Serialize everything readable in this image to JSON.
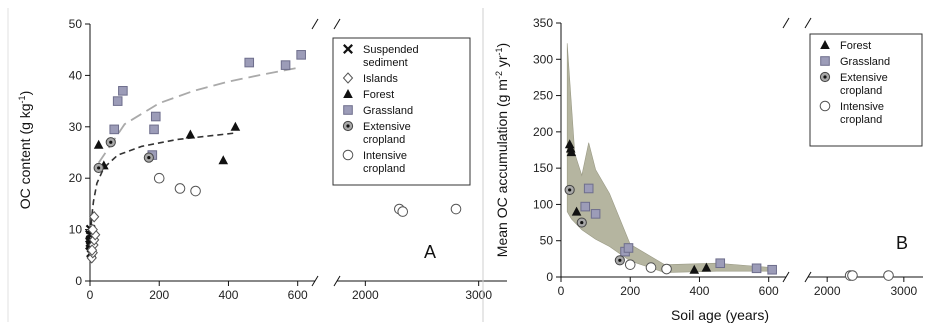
{
  "chart_data": [
    {
      "type": "scatter",
      "panel_label": "A",
      "ylabel": "OC content (g kg",
      "ylabel_sup": "-1",
      "ylabel_end": ")",
      "ylim": [
        0,
        50
      ],
      "yticks": [
        0,
        10,
        20,
        30,
        40,
        50
      ],
      "xticks": [
        0,
        200,
        400,
        600,
        2000,
        3000
      ],
      "x_axis_break": [
        650,
        1750
      ],
      "legend": "top-right",
      "series": [
        {
          "name": "Suspended sediment",
          "marker": "x",
          "points": [
            [
              0,
              7
            ],
            [
              2,
              8
            ],
            [
              4,
              6.5
            ],
            [
              1,
              7.5
            ],
            [
              3,
              5.5
            ],
            [
              0,
              9
            ],
            [
              2,
              10
            ]
          ]
        },
        {
          "name": "Islands",
          "marker": "diamond-open",
          "points": [
            [
              5,
              4.5
            ],
            [
              8,
              5.5
            ],
            [
              10,
              7
            ],
            [
              12,
              8
            ],
            [
              15,
              9
            ],
            [
              8,
              10
            ],
            [
              12,
              12.5
            ],
            [
              6,
              6
            ]
          ]
        },
        {
          "name": "Forest",
          "marker": "triangle",
          "points": [
            [
              25,
              26.5
            ],
            [
              40,
              22.5
            ],
            [
              290,
              28.5
            ],
            [
              385,
              23.5
            ],
            [
              420,
              30
            ]
          ]
        },
        {
          "name": "Grassland",
          "marker": "square",
          "points": [
            [
              70,
              29.5
            ],
            [
              80,
              35
            ],
            [
              95,
              37
            ],
            [
              180,
              24.5
            ],
            [
              185,
              29.5
            ],
            [
              190,
              32
            ],
            [
              460,
              42.5
            ],
            [
              565,
              42
            ],
            [
              610,
              44
            ]
          ]
        },
        {
          "name": "Extensive cropland",
          "marker": "dot-circle",
          "points": [
            [
              25,
              22
            ],
            [
              60,
              27
            ],
            [
              170,
              24
            ]
          ]
        },
        {
          "name": "Intensive cropland",
          "marker": "circle-open",
          "points": [
            [
              200,
              20
            ],
            [
              260,
              18
            ],
            [
              305,
              17.5
            ],
            [
              2300,
              14
            ],
            [
              2330,
              13.5
            ],
            [
              2800,
              14
            ]
          ]
        }
      ],
      "fit_lines": [
        {
          "for": "Grassland",
          "style": "dashed-light",
          "x": [
            25,
            100,
            200,
            300,
            400,
            500,
            610
          ],
          "y": [
            23,
            30.5,
            34.6,
            37,
            38.8,
            40.2,
            41.6
          ]
        },
        {
          "for": "Forest",
          "style": "dashed-dark",
          "x": [
            0,
            5,
            10,
            20,
            40,
            80,
            150,
            250,
            420
          ],
          "y": [
            7,
            12.5,
            15.5,
            19,
            22,
            24.5,
            26.2,
            27.5,
            28.8
          ]
        }
      ]
    },
    {
      "type": "scatter",
      "panel_label": "B",
      "ylabel": "Mean OC accumulation (g m",
      "ylabel_sup1": "-2",
      "ylabel_mid": " yr",
      "ylabel_sup2": "-1",
      "ylabel_end": ")",
      "xlabel": "Soil age (years)",
      "ylim": [
        0,
        350
      ],
      "yticks": [
        0,
        50,
        100,
        150,
        200,
        250,
        300,
        350
      ],
      "xticks": [
        0,
        200,
        400,
        600,
        2000,
        3000
      ],
      "x_axis_break": [
        650,
        1750
      ],
      "legend": "top-right",
      "series": [
        {
          "name": "Forest",
          "marker": "triangle",
          "points": [
            [
              25,
              183
            ],
            [
              28,
              177
            ],
            [
              30,
              172
            ],
            [
              45,
              90
            ],
            [
              385,
              10
            ],
            [
              420,
              13
            ]
          ]
        },
        {
          "name": "Grassland",
          "marker": "square",
          "points": [
            [
              70,
              97
            ],
            [
              80,
              122
            ],
            [
              100,
              87
            ],
            [
              185,
              35
            ],
            [
              195,
              40
            ],
            [
              460,
              19
            ],
            [
              565,
              12
            ],
            [
              610,
              10
            ]
          ]
        },
        {
          "name": "Extensive cropland",
          "marker": "dot-circle",
          "points": [
            [
              25,
              120
            ],
            [
              60,
              75
            ],
            [
              170,
              23
            ]
          ]
        },
        {
          "name": "Intensive cropland",
          "marker": "circle-open",
          "points": [
            [
              200,
              17
            ],
            [
              260,
              13
            ],
            [
              305,
              11
            ],
            [
              2300,
              2
            ],
            [
              2330,
              2
            ],
            [
              2800,
              2
            ]
          ]
        }
      ],
      "band": {
        "upper": [
          [
            18,
            322
          ],
          [
            40,
            170
          ],
          [
            60,
            140
          ],
          [
            80,
            185
          ],
          [
            100,
            148
          ],
          [
            140,
            115
          ],
          [
            200,
            45
          ],
          [
            300,
            17
          ],
          [
            450,
            19
          ],
          [
            610,
            13
          ]
        ],
        "lower": [
          [
            610,
            8
          ],
          [
            450,
            8
          ],
          [
            300,
            6
          ],
          [
            200,
            22
          ],
          [
            140,
            42
          ],
          [
            100,
            52
          ],
          [
            60,
            65
          ],
          [
            30,
            80
          ],
          [
            18,
            90
          ]
        ]
      }
    }
  ]
}
